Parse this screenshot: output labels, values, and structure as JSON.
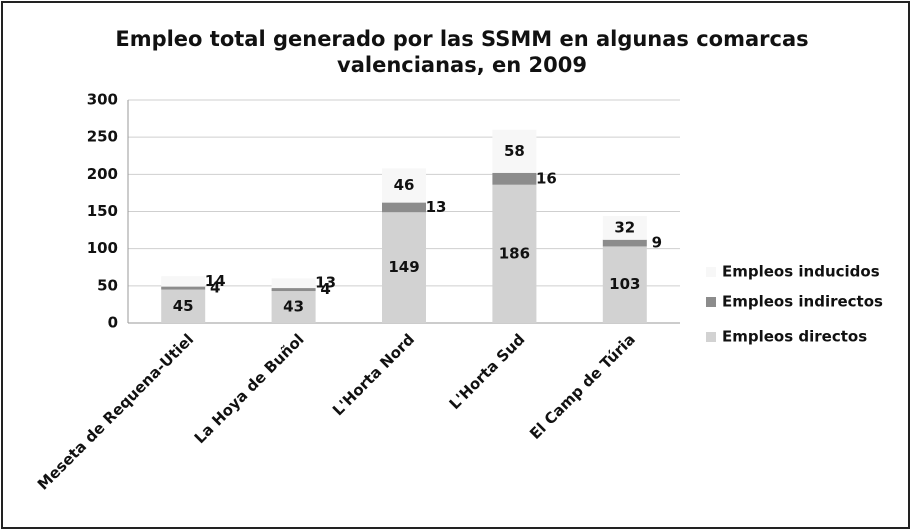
{
  "chart_data": {
    "type": "stacked_bar",
    "title": [
      "Empleo total generado por las SSMM en algunas comarcas",
      "valencianas, en 2009"
    ],
    "categories": [
      "Meseta de Requena-Utiel",
      "La Hoya de Buñol",
      "L'Horta Nord",
      "L'Horta Sud",
      "El Camp de Túria"
    ],
    "series": [
      {
        "name": "Empleos directos",
        "color": "#d2d2d2",
        "values": [
          45,
          43,
          149,
          186,
          103
        ]
      },
      {
        "name": "Empleos indirectos",
        "color": "#8c8c8c",
        "values": [
          4,
          4,
          13,
          16,
          9
        ]
      },
      {
        "name": "Empleos inducidos",
        "color": "#f7f7f7",
        "values": [
          14,
          13,
          46,
          58,
          32
        ]
      }
    ],
    "ylim": [
      0,
      300
    ],
    "yticks": [
      0,
      50,
      100,
      150,
      200,
      250,
      300
    ],
    "grid": true,
    "legend": "right"
  }
}
